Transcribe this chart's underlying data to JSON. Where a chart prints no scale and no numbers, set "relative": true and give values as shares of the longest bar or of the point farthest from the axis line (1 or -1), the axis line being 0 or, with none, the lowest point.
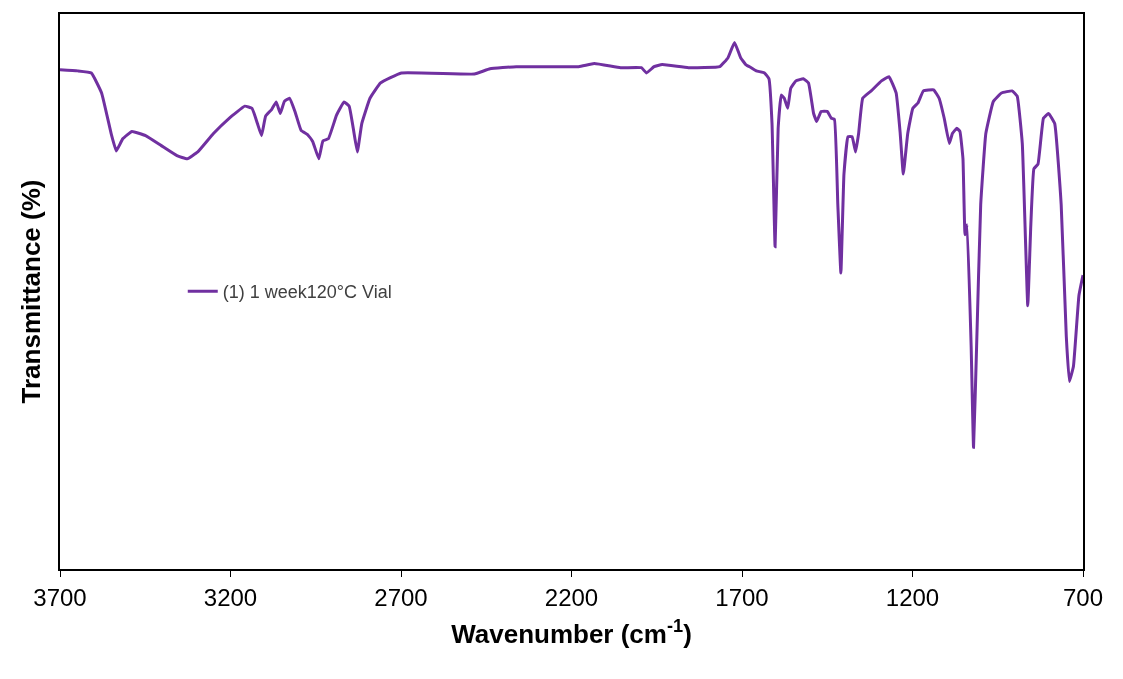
{
  "chart_data": {
    "type": "line",
    "xlabel": "Wavenumber (cm$^{-1}$)",
    "ylabel": "Transmittance (%)",
    "relative": true,
    "xlim": [
      3700,
      700
    ],
    "xticks": [
      3700,
      3200,
      2700,
      2200,
      1700,
      1200,
      700
    ],
    "legend": "left",
    "marker": "none",
    "line_style": "solid",
    "x": [
      3700,
      3648,
      3608,
      3578,
      3550,
      3535,
      3516,
      3489,
      3449,
      3403,
      3357,
      3327,
      3296,
      3250,
      3204,
      3158,
      3137,
      3121,
      3109,
      3097,
      3079,
      3066,
      3054,
      3042,
      3027,
      3011,
      2993,
      2974,
      2959,
      2941,
      2929,
      2913,
      2889,
      2867,
      2852,
      2840,
      2828,
      2815,
      2791,
      2760,
      2699,
      2485,
      2439,
      2362,
      2179,
      2133,
      2056,
      1995,
      1980,
      1958,
      1934,
      1857,
      1765,
      1741,
      1722,
      1704,
      1689,
      1673,
      1658,
      1634,
      1621,
      1612,
      1603,
      1594,
      1585,
      1576,
      1566,
      1557,
      1542,
      1520,
      1505,
      1490,
      1481,
      1468,
      1450,
      1438,
      1429,
      1419,
      1410,
      1401,
      1389,
      1377,
      1367,
      1358,
      1346,
      1321,
      1291,
      1269,
      1248,
      1236,
      1227,
      1214,
      1199,
      1184,
      1168,
      1138,
      1122,
      1107,
      1092,
      1083,
      1070,
      1061,
      1052,
      1046,
      1040,
      1028,
      1021,
      1012,
      1000,
      985,
      963,
      939,
      908,
      893,
      878,
      862,
      853,
      844,
      832,
      816,
      801,
      783,
      764,
      749,
      740,
      728,
      712,
      700
    ],
    "series": [
      {
        "name": "(1) 1 week120°C Vial",
        "color": "#7030a0",
        "values": [
          0.948,
          0.946,
          0.942,
          0.904,
          0.827,
          0.794,
          0.817,
          0.831,
          0.823,
          0.804,
          0.785,
          0.779,
          0.792,
          0.827,
          0.856,
          0.879,
          0.875,
          0.846,
          0.823,
          0.86,
          0.873,
          0.887,
          0.865,
          0.888,
          0.894,
          0.869,
          0.833,
          0.825,
          0.812,
          0.779,
          0.813,
          0.817,
          0.862,
          0.887,
          0.879,
          0.837,
          0.792,
          0.846,
          0.894,
          0.923,
          0.942,
          0.94,
          0.95,
          0.954,
          0.954,
          0.96,
          0.952,
          0.952,
          0.942,
          0.954,
          0.958,
          0.952,
          0.954,
          0.971,
          1,
          0.971,
          0.958,
          0.952,
          0.946,
          0.942,
          0.931,
          0.846,
          0.612,
          0.837,
          0.9,
          0.894,
          0.875,
          0.913,
          0.927,
          0.931,
          0.923,
          0.865,
          0.85,
          0.869,
          0.869,
          0.856,
          0.854,
          0.692,
          0.562,
          0.75,
          0.821,
          0.821,
          0.792,
          0.827,
          0.894,
          0.908,
          0.927,
          0.935,
          0.904,
          0.827,
          0.75,
          0.827,
          0.875,
          0.885,
          0.908,
          0.91,
          0.894,
          0.856,
          0.808,
          0.827,
          0.837,
          0.831,
          0.779,
          0.635,
          0.654,
          0.423,
          0.231,
          0.423,
          0.692,
          0.827,
          0.888,
          0.904,
          0.908,
          0.898,
          0.808,
          0.5,
          0.654,
          0.76,
          0.769,
          0.856,
          0.865,
          0.846,
          0.692,
          0.442,
          0.356,
          0.385,
          0.519,
          0.558
        ]
      }
    ]
  }
}
